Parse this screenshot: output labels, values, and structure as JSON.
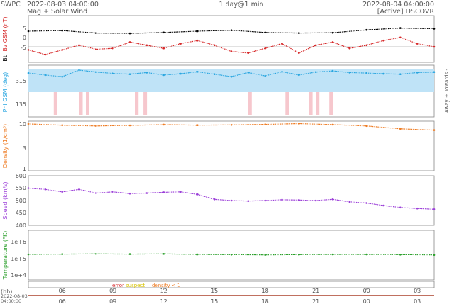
{
  "header": {
    "org": "SWPC",
    "start_time": "2022-08-03 04:00:00",
    "subtitle": "Mag + Solar Wind",
    "span": "1 day@1 min",
    "end_time": "2022-08-04 04:00:00",
    "source": "[Active] DSCOVR"
  },
  "legend": {
    "error": "error",
    "suspect": "suspect",
    "density": "density < 1"
  },
  "footer": {
    "hh_label": "(hh)",
    "start_date": "2022-08-03",
    "start_clock": "04:00:00"
  },
  "chart_data": [
    {
      "type": "scatter",
      "ylabel_parts": [
        "Bt",
        "Bz GSM (nT)"
      ],
      "ylim": [
        -5,
        10
      ],
      "yticks": [
        "5",
        "0",
        "-5"
      ],
      "zero_line": true,
      "series": [
        {
          "name": "Bt",
          "color": "#000000",
          "x": [
            4,
            6,
            8,
            10,
            12,
            14,
            16,
            18,
            20,
            22,
            24,
            26,
            28
          ],
          "y": [
            5.0,
            5.2,
            4.4,
            4.3,
            4.6,
            5.0,
            5.3,
            4.6,
            4.4,
            4.5,
            5.4,
            6.0,
            5.8
          ]
        },
        {
          "name": "Bz GSM",
          "color": "#d62728",
          "x": [
            4,
            5,
            6,
            7,
            8,
            9,
            10,
            11,
            12,
            13,
            14,
            15,
            16,
            17,
            18,
            19,
            20,
            21,
            22,
            23,
            24,
            25,
            26,
            27,
            28
          ],
          "y": [
            -1.0,
            -2.5,
            -1.0,
            0.5,
            -0.8,
            -0.5,
            1.5,
            0.5,
            -0.5,
            1.0,
            2.0,
            0.5,
            -1.5,
            -2.0,
            -0.5,
            1.0,
            -2.0,
            0.5,
            1.5,
            -0.5,
            0.5,
            2.0,
            3.0,
            1.0,
            0.0
          ]
        }
      ]
    },
    {
      "type": "scatter",
      "ylabel": "Phi GSM (deg)",
      "right_label": "Away + Towards -",
      "ylim": [
        45,
        360
      ],
      "yticks": [
        "315",
        "135"
      ],
      "series": [
        {
          "name": "Phi GSM",
          "color": "#29a6e0",
          "x": [
            4,
            5,
            6,
            7,
            8,
            9,
            10,
            11,
            12,
            13,
            14,
            15,
            16,
            17,
            18,
            19,
            20,
            21,
            22,
            23,
            24,
            25,
            26,
            27,
            28
          ],
          "y": [
            312,
            300,
            290,
            330,
            318,
            310,
            305,
            315,
            300,
            308,
            320,
            305,
            290,
            315,
            295,
            320,
            300,
            318,
            325,
            315,
            312,
            308,
            305,
            315,
            318
          ]
        }
      ]
    },
    {
      "type": "scatter",
      "ylabel": "Density (1/cm³)",
      "yscale": "log",
      "ylim": [
        1,
        10
      ],
      "yticks": [
        "10",
        "3",
        "1"
      ],
      "series": [
        {
          "name": "Density",
          "color": "#ee7c24",
          "x": [
            4,
            6,
            8,
            10,
            12,
            14,
            16,
            18,
            20,
            22,
            24,
            26,
            28
          ],
          "y": [
            8.8,
            8.3,
            8.0,
            8.2,
            8.5,
            8.3,
            8.4,
            8.6,
            8.9,
            8.5,
            8.0,
            7.0,
            6.6
          ]
        }
      ]
    },
    {
      "type": "scatter",
      "ylabel": "Speed (km/s)",
      "ylim": [
        400,
        600
      ],
      "yticks": [
        "600",
        "550",
        "500",
        "450",
        "400"
      ],
      "series": [
        {
          "name": "Speed",
          "color": "#9b3fd8",
          "x": [
            4,
            5,
            6,
            7,
            8,
            9,
            10,
            11,
            12,
            13,
            14,
            15,
            16,
            17,
            18,
            19,
            20,
            21,
            22,
            23,
            24,
            25,
            26,
            27,
            28
          ],
          "y": [
            550,
            545,
            535,
            545,
            530,
            535,
            528,
            530,
            533,
            535,
            525,
            505,
            500,
            498,
            500,
            503,
            502,
            500,
            505,
            495,
            490,
            480,
            472,
            468,
            465
          ]
        }
      ]
    },
    {
      "type": "scatter",
      "ylabel": "Temperature (°K)",
      "yscale": "log",
      "ylim": [
        4000,
        4000000
      ],
      "yticks": [
        "1e+6",
        "1e+5",
        "1e+4"
      ],
      "series": [
        {
          "name": "Temperature",
          "color": "#2ca02c",
          "x": [
            4,
            6,
            8,
            10,
            12,
            14,
            16,
            18,
            20,
            22,
            24,
            26,
            28
          ],
          "y": [
            140000,
            145000,
            150000,
            145000,
            150000,
            140000,
            135000,
            130000,
            135000,
            140000,
            140000,
            135000,
            130000
          ]
        }
      ]
    }
  ],
  "time_axis": {
    "ticks": [
      "06",
      "09",
      "12",
      "15",
      "18",
      "21",
      "00",
      "03"
    ],
    "tick_hours": [
      6,
      9,
      12,
      15,
      18,
      21,
      24,
      27
    ],
    "x_range_hours": [
      4,
      28
    ]
  }
}
